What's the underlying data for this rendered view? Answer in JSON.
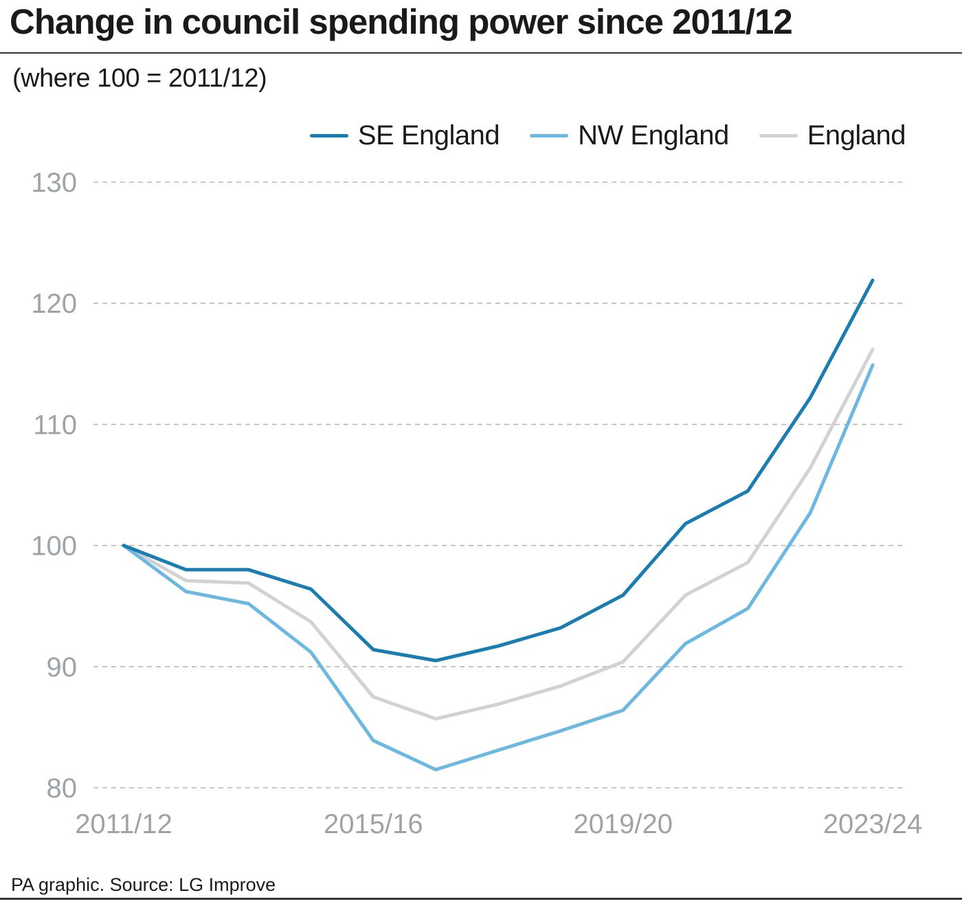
{
  "title": "Change in council spending power since 2011/12",
  "subtitle": "(where 100 = 2011/12)",
  "source": "PA graphic. Source: LG Improve",
  "colors": {
    "se_england": "#1a7db1",
    "nw_england": "#6cb8e0",
    "england": "#d2d2d2",
    "grid": "#b7b7b7",
    "tick": "#9ea3a8"
  },
  "chart_data": {
    "type": "line",
    "x": [
      "2011/12",
      "2012/13",
      "2013/14",
      "2014/15",
      "2015/16",
      "2016/17",
      "2017/18",
      "2018/19",
      "2019/20",
      "2020/21",
      "2021/22",
      "2022/23",
      "2023/24"
    ],
    "x_tick_labels": [
      "2011/12",
      "2015/16",
      "2019/20",
      "2023/24"
    ],
    "y_ticks": [
      80,
      90,
      100,
      110,
      120,
      130
    ],
    "ylim": [
      80,
      130
    ],
    "grid": "horizontal dashed",
    "legend_position": "top-right",
    "series": [
      {
        "name": "SE England",
        "color": "#1a7db1",
        "values": [
          100,
          98.0,
          98.0,
          96.4,
          91.4,
          90.5,
          91.7,
          93.2,
          95.9,
          101.8,
          104.5,
          112.2,
          121.9
        ]
      },
      {
        "name": "NW England",
        "color": "#6cb8e0",
        "values": [
          100,
          96.2,
          95.2,
          91.2,
          83.9,
          81.5,
          83.1,
          84.7,
          86.4,
          91.9,
          94.8,
          102.7,
          114.9
        ]
      },
      {
        "name": "England",
        "color": "#d2d2d2",
        "values": [
          100,
          97.1,
          96.9,
          93.7,
          87.5,
          85.7,
          86.9,
          88.4,
          90.4,
          95.9,
          98.6,
          106.4,
          116.2
        ]
      }
    ]
  }
}
